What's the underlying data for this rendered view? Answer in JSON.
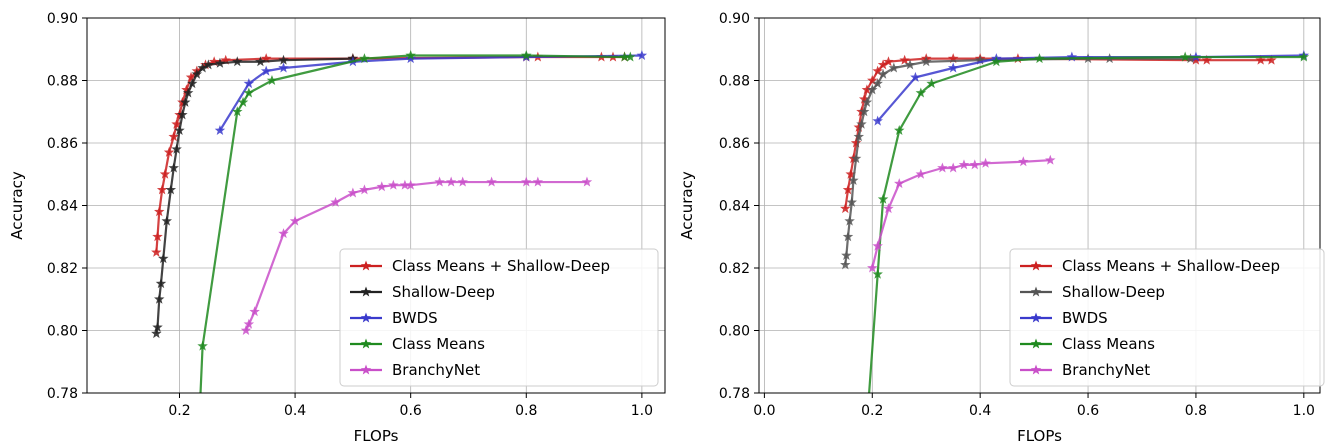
{
  "chart_data": [
    {
      "type": "line",
      "xlabel": "FLOPs",
      "ylabel": "Accuracy",
      "xlim": [
        0.04,
        1.04
      ],
      "ylim": [
        0.78,
        0.9
      ],
      "xticks": [
        0.2,
        0.4,
        0.6,
        0.8,
        1.0
      ],
      "xtick_labels": [
        "0.2",
        "0.4",
        "0.6",
        "0.8",
        "1.0"
      ],
      "yticks": [
        0.78,
        0.8,
        0.82,
        0.84,
        0.86,
        0.88,
        0.9
      ],
      "ytick_labels": [
        "0.78",
        "0.80",
        "0.82",
        "0.84",
        "0.86",
        "0.88",
        "0.90"
      ],
      "grid": true,
      "legend_position": "lower-right",
      "series": [
        {
          "name": "Class Means + Shallow-Deep",
          "color": "#cc2020",
          "x": [
            0.16,
            0.162,
            0.165,
            0.17,
            0.175,
            0.182,
            0.19,
            0.195,
            0.2,
            0.205,
            0.212,
            0.22,
            0.23,
            0.245,
            0.26,
            0.28,
            0.35,
            0.5,
            0.8,
            0.82,
            0.93,
            0.95,
            0.97
          ],
          "y": [
            0.825,
            0.83,
            0.838,
            0.845,
            0.85,
            0.857,
            0.862,
            0.866,
            0.869,
            0.873,
            0.877,
            0.881,
            0.883,
            0.885,
            0.886,
            0.8865,
            0.887,
            0.887,
            0.8875,
            0.8875,
            0.8875,
            0.8875,
            0.8875
          ]
        },
        {
          "name": "Shallow-Deep",
          "color": "#222222",
          "x": [
            0.16,
            0.162,
            0.165,
            0.168,
            0.172,
            0.178,
            0.185,
            0.19,
            0.195,
            0.2,
            0.205,
            0.21,
            0.215,
            0.222,
            0.23,
            0.24,
            0.25,
            0.27,
            0.3,
            0.34,
            0.38,
            0.5
          ],
          "y": [
            0.799,
            0.801,
            0.81,
            0.815,
            0.823,
            0.835,
            0.845,
            0.852,
            0.858,
            0.864,
            0.869,
            0.873,
            0.876,
            0.879,
            0.882,
            0.884,
            0.885,
            0.8855,
            0.886,
            0.886,
            0.8865,
            0.887
          ]
        },
        {
          "name": "BWDS",
          "color": "#3a3acc",
          "x": [
            0.27,
            0.32,
            0.35,
            0.38,
            0.5,
            0.6,
            0.8,
            1.0
          ],
          "y": [
            0.864,
            0.879,
            0.883,
            0.884,
            0.886,
            0.887,
            0.8875,
            0.888
          ]
        },
        {
          "name": "Class Means",
          "color": "#1f8a1f",
          "x": [
            0.234,
            0.24,
            0.3,
            0.31,
            0.32,
            0.36,
            0.52,
            0.6,
            0.8,
            0.97,
            0.98
          ],
          "y": [
            0.77,
            0.795,
            0.87,
            0.873,
            0.876,
            0.88,
            0.887,
            0.888,
            0.888,
            0.8875,
            0.8875
          ]
        },
        {
          "name": "BranchyNet",
          "color": "#c94fc9",
          "x": [
            0.315,
            0.32,
            0.33,
            0.38,
            0.4,
            0.47,
            0.5,
            0.52,
            0.55,
            0.57,
            0.59,
            0.6,
            0.65,
            0.67,
            0.69,
            0.74,
            0.8,
            0.82,
            0.905
          ],
          "y": [
            0.8,
            0.802,
            0.806,
            0.831,
            0.835,
            0.841,
            0.844,
            0.845,
            0.846,
            0.8465,
            0.8465,
            0.8465,
            0.8475,
            0.8475,
            0.8475,
            0.8475,
            0.8475,
            0.8475,
            0.8475
          ]
        }
      ]
    },
    {
      "type": "line",
      "xlabel": "FLOPs",
      "ylabel": "Accuracy",
      "xlim": [
        -0.01,
        1.03
      ],
      "ylim": [
        0.78,
        0.9
      ],
      "xticks": [
        0.0,
        0.2,
        0.4,
        0.6,
        0.8,
        1.0
      ],
      "xtick_labels": [
        "0.0",
        "0.2",
        "0.4",
        "0.6",
        "0.8",
        "1.0"
      ],
      "yticks": [
        0.78,
        0.8,
        0.82,
        0.84,
        0.86,
        0.88,
        0.9
      ],
      "ytick_labels": [
        "0.78",
        "0.80",
        "0.82",
        "0.84",
        "0.86",
        "0.88",
        "0.90"
      ],
      "grid": true,
      "legend_position": "lower-right",
      "series": [
        {
          "name": "Class Means + Shallow-Deep",
          "color": "#cc2020",
          "x": [
            0.15,
            0.155,
            0.16,
            0.165,
            0.17,
            0.175,
            0.18,
            0.185,
            0.19,
            0.2,
            0.21,
            0.22,
            0.23,
            0.26,
            0.3,
            0.35,
            0.4,
            0.47,
            0.8,
            0.82,
            0.92,
            0.94
          ],
          "y": [
            0.839,
            0.845,
            0.85,
            0.855,
            0.86,
            0.865,
            0.87,
            0.874,
            0.877,
            0.88,
            0.883,
            0.885,
            0.886,
            0.8865,
            0.887,
            0.887,
            0.887,
            0.887,
            0.8865,
            0.8865,
            0.8865,
            0.8865
          ]
        },
        {
          "name": "Shallow-Deep",
          "color": "#555555",
          "x": [
            0.15,
            0.152,
            0.155,
            0.158,
            0.162,
            0.165,
            0.17,
            0.175,
            0.18,
            0.185,
            0.19,
            0.2,
            0.21,
            0.22,
            0.24,
            0.27,
            0.3,
            0.4,
            0.6,
            0.64,
            0.79
          ],
          "y": [
            0.821,
            0.824,
            0.83,
            0.835,
            0.841,
            0.848,
            0.855,
            0.862,
            0.866,
            0.87,
            0.873,
            0.877,
            0.879,
            0.882,
            0.884,
            0.885,
            0.886,
            0.8865,
            0.887,
            0.887,
            0.887
          ]
        },
        {
          "name": "BWDS",
          "color": "#3a3acc",
          "x": [
            0.21,
            0.28,
            0.35,
            0.43,
            0.57,
            0.8,
            1.0
          ],
          "y": [
            0.867,
            0.881,
            0.884,
            0.887,
            0.8875,
            0.8875,
            0.888
          ]
        },
        {
          "name": "Class Means",
          "color": "#1f8a1f",
          "x": [
            0.19,
            0.21,
            0.22,
            0.25,
            0.29,
            0.31,
            0.43,
            0.51,
            0.78,
            1.0
          ],
          "y": [
            0.77,
            0.818,
            0.842,
            0.864,
            0.876,
            0.879,
            0.886,
            0.887,
            0.8875,
            0.8875
          ]
        },
        {
          "name": "BranchyNet",
          "color": "#c94fc9",
          "x": [
            0.2,
            0.21,
            0.23,
            0.25,
            0.29,
            0.33,
            0.35,
            0.37,
            0.39,
            0.41,
            0.48,
            0.53
          ],
          "y": [
            0.82,
            0.827,
            0.839,
            0.847,
            0.85,
            0.852,
            0.852,
            0.853,
            0.853,
            0.8535,
            0.854,
            0.8545
          ]
        }
      ]
    }
  ]
}
